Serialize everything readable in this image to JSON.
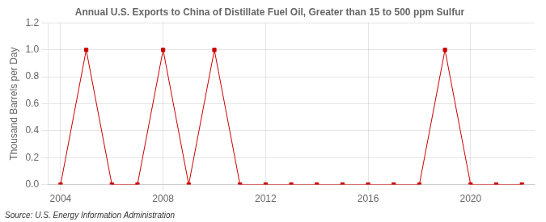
{
  "chart_data": {
    "type": "line",
    "title": "Annual U.S. Exports to China of Distillate Fuel Oil, Greater than 15 to 500 ppm Sulfur",
    "ylabel": "Thousand Barrels per Day",
    "source": "Source: U.S. Energy Information Administration",
    "x": [
      2004,
      2005,
      2006,
      2007,
      2008,
      2009,
      2010,
      2011,
      2012,
      2013,
      2014,
      2015,
      2016,
      2017,
      2018,
      2019,
      2020,
      2021,
      2022
    ],
    "values": [
      0.0,
      1.0,
      0.0,
      0.0,
      1.0,
      0.0,
      1.0,
      0.0,
      0.0,
      0.0,
      0.0,
      0.0,
      0.0,
      0.0,
      0.0,
      1.0,
      0.0,
      0.0,
      0.0
    ],
    "color": "#cc0000",
    "marker": "square",
    "line_style": "solid",
    "xlim": [
      2003.5,
      2022.5
    ],
    "xticks": [
      2004,
      2008,
      2012,
      2016,
      2020
    ],
    "ylim": [
      0.0,
      1.2
    ],
    "yticks": [
      {
        "value": 0.0,
        "label": "0.0"
      },
      0.2,
      0.4,
      0.6,
      0.8,
      {
        "value": 1.0,
        "label": "1.0"
      },
      1.2
    ],
    "grid": true
  }
}
